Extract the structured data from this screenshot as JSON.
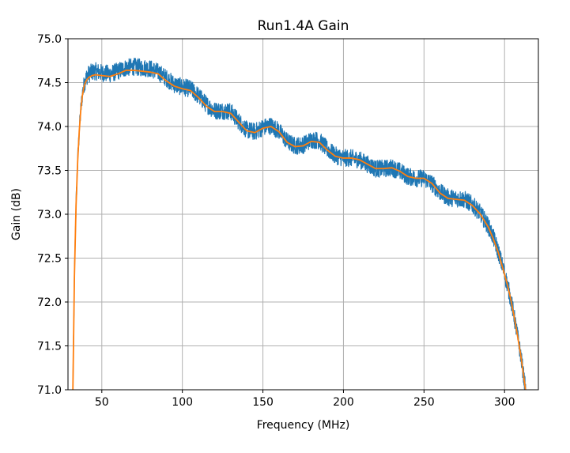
{
  "chart_data": {
    "type": "line",
    "title": "Run1.4A Gain",
    "xlabel": "Frequency (MHz)",
    "ylabel": "Gain (dB)",
    "xlim": [
      29,
      321
    ],
    "ylim": [
      71.0,
      75.0
    ],
    "xticks": [
      50,
      100,
      150,
      200,
      250,
      300
    ],
    "xtick_labels": [
      "50",
      "100",
      "150",
      "200",
      "250",
      "300"
    ],
    "yticks": [
      71.0,
      71.5,
      72.0,
      72.5,
      73.0,
      73.5,
      74.0,
      74.5,
      75.0
    ],
    "ytick_labels": [
      "71.0",
      "71.5",
      "72.0",
      "72.5",
      "73.0",
      "73.5",
      "74.0",
      "74.5",
      "75.0"
    ],
    "grid": true,
    "series": [
      {
        "role": "raw",
        "color": "#1f77b4",
        "noise_band_db": 0.1,
        "x": [
          32,
          33,
          34,
          35,
          36,
          37,
          38,
          39,
          40,
          41,
          42,
          44,
          46,
          50,
          55,
          60,
          65,
          70,
          75,
          80,
          85,
          90,
          95,
          100,
          105,
          110,
          115,
          120,
          125,
          130,
          135,
          140,
          145,
          150,
          155,
          160,
          165,
          170,
          175,
          180,
          185,
          190,
          195,
          200,
          205,
          210,
          215,
          220,
          225,
          230,
          235,
          240,
          245,
          250,
          255,
          260,
          265,
          270,
          275,
          280,
          285,
          290,
          293,
          296,
          299,
          302,
          304,
          306,
          308,
          310,
          311,
          312,
          313,
          314,
          315
        ],
        "y": [
          70.95,
          72.3,
          73.1,
          73.6,
          73.95,
          74.2,
          74.38,
          74.48,
          74.54,
          74.58,
          74.6,
          74.62,
          74.63,
          74.61,
          74.6,
          74.63,
          74.67,
          74.68,
          74.67,
          74.66,
          74.62,
          74.55,
          74.48,
          74.45,
          74.43,
          74.35,
          74.25,
          74.18,
          74.18,
          74.17,
          74.06,
          73.96,
          73.94,
          73.99,
          74.01,
          73.95,
          73.83,
          73.78,
          73.79,
          73.85,
          73.84,
          73.74,
          73.67,
          73.64,
          73.64,
          73.62,
          73.57,
          73.52,
          73.52,
          73.53,
          73.49,
          73.43,
          73.41,
          73.41,
          73.35,
          73.25,
          73.19,
          73.18,
          73.17,
          73.11,
          73.01,
          72.86,
          72.74,
          72.58,
          72.39,
          72.18,
          72.02,
          71.83,
          71.62,
          71.4,
          71.27,
          71.14,
          71.0,
          70.85,
          70.7
        ]
      },
      {
        "role": "smoothed",
        "color": "#ff7f0e",
        "x": [
          32,
          33,
          34,
          35,
          36,
          37,
          38,
          39,
          40,
          41,
          42,
          44,
          46,
          50,
          55,
          60,
          65,
          70,
          75,
          80,
          85,
          90,
          95,
          100,
          105,
          110,
          115,
          120,
          125,
          130,
          135,
          140,
          145,
          150,
          155,
          160,
          165,
          170,
          175,
          180,
          185,
          190,
          195,
          200,
          205,
          210,
          215,
          220,
          225,
          230,
          235,
          240,
          245,
          250,
          255,
          260,
          265,
          270,
          275,
          280,
          285,
          290,
          293,
          296,
          299,
          302,
          304,
          306,
          308,
          310,
          311,
          312,
          313,
          314,
          315
        ],
        "y": [
          70.95,
          72.3,
          73.1,
          73.6,
          73.95,
          74.2,
          74.36,
          74.46,
          74.51,
          74.54,
          74.56,
          74.58,
          74.59,
          74.58,
          74.57,
          74.6,
          74.64,
          74.64,
          74.63,
          74.62,
          74.6,
          74.52,
          74.46,
          74.43,
          74.41,
          74.33,
          74.23,
          74.17,
          74.17,
          74.15,
          74.05,
          73.95,
          73.93,
          73.98,
          74.0,
          73.94,
          73.82,
          73.77,
          73.78,
          73.83,
          73.82,
          73.73,
          73.66,
          73.64,
          73.64,
          73.62,
          73.57,
          73.52,
          73.52,
          73.53,
          73.49,
          73.43,
          73.41,
          73.41,
          73.35,
          73.24,
          73.18,
          73.17,
          73.16,
          73.1,
          73.0,
          72.85,
          72.72,
          72.57,
          72.38,
          72.18,
          72.02,
          71.83,
          71.62,
          71.4,
          71.27,
          71.14,
          71.0,
          70.85,
          70.7
        ]
      }
    ]
  }
}
